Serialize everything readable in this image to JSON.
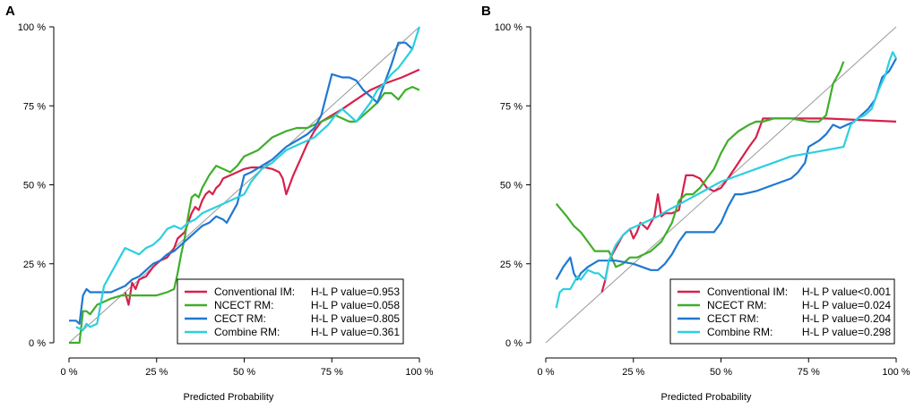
{
  "chart_data": [
    {
      "type": "line",
      "panel": "A",
      "title": "",
      "xlabel": "Predicted Probability",
      "ylabel": "",
      "xlim": [
        0,
        1
      ],
      "ylim": [
        0,
        1
      ],
      "x_ticks": [
        "0 %",
        "25 %",
        "50 %",
        "75 %",
        "100 %"
      ],
      "y_ticks": [
        "0 %",
        "25 %",
        "50 %",
        "75 %",
        "100 %"
      ],
      "legend_position": "bottom-right",
      "reference_line": {
        "x": [
          0,
          1
        ],
        "y": [
          0,
          1
        ],
        "color": "#999999"
      },
      "series": [
        {
          "name": "Conventional IM:",
          "hl": "H-L P value=0.953",
          "color": "#d6214b",
          "x": [
            0.16,
            0.17,
            0.18,
            0.19,
            0.2,
            0.22,
            0.24,
            0.26,
            0.28,
            0.3,
            0.31,
            0.33,
            0.34,
            0.35,
            0.36,
            0.37,
            0.38,
            0.39,
            0.4,
            0.41,
            0.42,
            0.43,
            0.44,
            0.46,
            0.48,
            0.5,
            0.52,
            0.54,
            0.56,
            0.58,
            0.6,
            0.61,
            0.62,
            0.64,
            0.66,
            0.68,
            0.7,
            0.72,
            0.75,
            0.78,
            0.82,
            0.86,
            0.9,
            0.95,
            1.0
          ],
          "y": [
            0.16,
            0.12,
            0.19,
            0.17,
            0.2,
            0.21,
            0.24,
            0.26,
            0.27,
            0.3,
            0.33,
            0.35,
            0.38,
            0.41,
            0.43,
            0.42,
            0.45,
            0.47,
            0.48,
            0.47,
            0.49,
            0.5,
            0.52,
            0.53,
            0.54,
            0.55,
            0.555,
            0.555,
            0.555,
            0.55,
            0.54,
            0.52,
            0.47,
            0.53,
            0.58,
            0.63,
            0.67,
            0.7,
            0.72,
            0.74,
            0.77,
            0.8,
            0.82,
            0.84,
            0.865
          ]
        },
        {
          "name": "NCECT RM:",
          "hl": "H-L P value=0.058",
          "color": "#3fae2a",
          "x": [
            0.0,
            0.03,
            0.04,
            0.05,
            0.06,
            0.08,
            0.1,
            0.12,
            0.15,
            0.2,
            0.25,
            0.28,
            0.3,
            0.31,
            0.32,
            0.33,
            0.34,
            0.35,
            0.36,
            0.37,
            0.38,
            0.39,
            0.4,
            0.42,
            0.44,
            0.46,
            0.48,
            0.5,
            0.52,
            0.54,
            0.56,
            0.58,
            0.6,
            0.62,
            0.65,
            0.68,
            0.7,
            0.72,
            0.74,
            0.76,
            0.78,
            0.8,
            0.82,
            0.84,
            0.86,
            0.88,
            0.9,
            0.92,
            0.94,
            0.96,
            0.98,
            1.0
          ],
          "y": [
            0.0,
            0.0,
            0.1,
            0.1,
            0.09,
            0.12,
            0.13,
            0.14,
            0.15,
            0.15,
            0.15,
            0.16,
            0.17,
            0.22,
            0.28,
            0.33,
            0.4,
            0.46,
            0.47,
            0.46,
            0.49,
            0.51,
            0.53,
            0.56,
            0.55,
            0.54,
            0.56,
            0.59,
            0.6,
            0.61,
            0.63,
            0.65,
            0.66,
            0.67,
            0.68,
            0.68,
            0.69,
            0.7,
            0.71,
            0.72,
            0.71,
            0.7,
            0.7,
            0.72,
            0.74,
            0.76,
            0.79,
            0.79,
            0.77,
            0.8,
            0.81,
            0.8
          ]
        },
        {
          "name": "CECT RM:",
          "hl": "H-L P value=0.805",
          "color": "#1f78d1",
          "x": [
            0.0,
            0.02,
            0.03,
            0.04,
            0.05,
            0.06,
            0.08,
            0.1,
            0.12,
            0.14,
            0.16,
            0.18,
            0.2,
            0.22,
            0.24,
            0.26,
            0.28,
            0.3,
            0.32,
            0.34,
            0.36,
            0.38,
            0.4,
            0.42,
            0.44,
            0.45,
            0.46,
            0.48,
            0.5,
            0.52,
            0.55,
            0.58,
            0.6,
            0.62,
            0.65,
            0.68,
            0.7,
            0.72,
            0.75,
            0.78,
            0.8,
            0.82,
            0.84,
            0.86,
            0.88,
            0.9,
            0.92,
            0.94,
            0.96,
            0.97,
            0.98
          ],
          "y": [
            0.07,
            0.07,
            0.06,
            0.15,
            0.17,
            0.16,
            0.16,
            0.16,
            0.16,
            0.17,
            0.18,
            0.2,
            0.21,
            0.23,
            0.25,
            0.26,
            0.28,
            0.29,
            0.31,
            0.33,
            0.35,
            0.37,
            0.38,
            0.4,
            0.39,
            0.38,
            0.4,
            0.44,
            0.53,
            0.54,
            0.56,
            0.58,
            0.6,
            0.62,
            0.64,
            0.66,
            0.68,
            0.72,
            0.85,
            0.84,
            0.84,
            0.83,
            0.8,
            0.78,
            0.76,
            0.82,
            0.88,
            0.95,
            0.95,
            0.94,
            0.93
          ]
        },
        {
          "name": "Combine RM:",
          "hl": "H-L P value=0.361",
          "color": "#2ccfdf",
          "x": [
            0.02,
            0.04,
            0.05,
            0.06,
            0.08,
            0.1,
            0.12,
            0.14,
            0.16,
            0.18,
            0.2,
            0.22,
            0.24,
            0.26,
            0.28,
            0.3,
            0.32,
            0.34,
            0.36,
            0.38,
            0.4,
            0.42,
            0.44,
            0.46,
            0.48,
            0.5,
            0.52,
            0.55,
            0.58,
            0.6,
            0.62,
            0.64,
            0.66,
            0.68,
            0.7,
            0.72,
            0.74,
            0.76,
            0.78,
            0.8,
            0.82,
            0.84,
            0.86,
            0.88,
            0.9,
            0.92,
            0.94,
            0.96,
            0.98,
            1.0
          ],
          "y": [
            0.05,
            0.04,
            0.06,
            0.05,
            0.06,
            0.18,
            0.22,
            0.26,
            0.3,
            0.29,
            0.28,
            0.3,
            0.31,
            0.33,
            0.36,
            0.37,
            0.36,
            0.38,
            0.39,
            0.41,
            0.42,
            0.43,
            0.44,
            0.45,
            0.46,
            0.47,
            0.51,
            0.55,
            0.57,
            0.59,
            0.61,
            0.62,
            0.63,
            0.64,
            0.65,
            0.67,
            0.69,
            0.72,
            0.74,
            0.72,
            0.7,
            0.73,
            0.76,
            0.8,
            0.82,
            0.85,
            0.87,
            0.9,
            0.93,
            1.0
          ]
        }
      ]
    },
    {
      "type": "line",
      "panel": "B",
      "title": "",
      "xlabel": "Predicted Probability",
      "ylabel": "",
      "xlim": [
        0,
        1
      ],
      "ylim": [
        0,
        1
      ],
      "x_ticks": [
        "0 %",
        "25 %",
        "50 %",
        "75 %",
        "100 %"
      ],
      "y_ticks": [
        "0 %",
        "25 %",
        "50 %",
        "75 %",
        "100 %"
      ],
      "legend_position": "bottom-right",
      "reference_line": {
        "x": [
          0,
          1
        ],
        "y": [
          0,
          1
        ],
        "color": "#999999"
      },
      "series": [
        {
          "name": "Conventional IM:",
          "hl": "H-L P value<0.001",
          "color": "#d6214b",
          "x": [
            0.16,
            0.17,
            0.18,
            0.2,
            0.22,
            0.24,
            0.25,
            0.26,
            0.27,
            0.28,
            0.29,
            0.3,
            0.31,
            0.32,
            0.33,
            0.34,
            0.36,
            0.38,
            0.4,
            0.42,
            0.44,
            0.46,
            0.48,
            0.5,
            0.52,
            0.55,
            0.58,
            0.6,
            0.62,
            0.65,
            0.7,
            0.8,
            0.9,
            1.0
          ],
          "y": [
            0.16,
            0.2,
            0.26,
            0.3,
            0.34,
            0.36,
            0.33,
            0.35,
            0.38,
            0.37,
            0.36,
            0.38,
            0.4,
            0.47,
            0.4,
            0.41,
            0.41,
            0.42,
            0.53,
            0.53,
            0.52,
            0.49,
            0.48,
            0.49,
            0.52,
            0.57,
            0.62,
            0.65,
            0.71,
            0.71,
            0.71,
            0.71,
            0.705,
            0.7
          ]
        },
        {
          "name": "NCECT RM:",
          "hl": "H-L P value=0.024",
          "color": "#3fae2a",
          "x": [
            0.03,
            0.06,
            0.08,
            0.1,
            0.12,
            0.14,
            0.16,
            0.18,
            0.2,
            0.22,
            0.24,
            0.26,
            0.28,
            0.3,
            0.33,
            0.36,
            0.38,
            0.4,
            0.42,
            0.44,
            0.46,
            0.48,
            0.5,
            0.52,
            0.55,
            0.58,
            0.6,
            0.62,
            0.65,
            0.7,
            0.75,
            0.78,
            0.8,
            0.82,
            0.84,
            0.85
          ],
          "y": [
            0.44,
            0.4,
            0.37,
            0.35,
            0.32,
            0.29,
            0.29,
            0.29,
            0.24,
            0.25,
            0.27,
            0.27,
            0.28,
            0.29,
            0.32,
            0.38,
            0.45,
            0.47,
            0.47,
            0.49,
            0.52,
            0.55,
            0.6,
            0.64,
            0.67,
            0.69,
            0.7,
            0.7,
            0.71,
            0.71,
            0.7,
            0.7,
            0.72,
            0.82,
            0.86,
            0.89
          ]
        },
        {
          "name": "CECT RM:",
          "hl": "H-L P value=0.204",
          "color": "#1f78d1",
          "x": [
            0.03,
            0.05,
            0.07,
            0.08,
            0.09,
            0.1,
            0.12,
            0.15,
            0.2,
            0.25,
            0.3,
            0.32,
            0.34,
            0.36,
            0.38,
            0.4,
            0.42,
            0.44,
            0.46,
            0.48,
            0.5,
            0.52,
            0.54,
            0.56,
            0.6,
            0.65,
            0.7,
            0.72,
            0.74,
            0.75,
            0.78,
            0.8,
            0.82,
            0.84,
            0.86,
            0.88,
            0.9,
            0.92,
            0.94,
            0.96,
            0.98,
            1.0
          ],
          "y": [
            0.2,
            0.24,
            0.27,
            0.22,
            0.2,
            0.22,
            0.24,
            0.26,
            0.26,
            0.25,
            0.23,
            0.23,
            0.25,
            0.28,
            0.32,
            0.35,
            0.35,
            0.35,
            0.35,
            0.35,
            0.38,
            0.43,
            0.47,
            0.47,
            0.48,
            0.5,
            0.52,
            0.54,
            0.57,
            0.62,
            0.64,
            0.66,
            0.69,
            0.68,
            0.69,
            0.7,
            0.72,
            0.74,
            0.77,
            0.84,
            0.86,
            0.9
          ]
        },
        {
          "name": "Combine RM:",
          "hl": "H-L P value=0.298",
          "color": "#2ccfdf",
          "x": [
            0.03,
            0.04,
            0.05,
            0.07,
            0.08,
            0.09,
            0.1,
            0.12,
            0.14,
            0.15,
            0.17,
            0.18,
            0.2,
            0.22,
            0.24,
            0.26,
            0.28,
            0.3,
            0.32,
            0.35,
            0.4,
            0.45,
            0.5,
            0.55,
            0.6,
            0.65,
            0.7,
            0.75,
            0.8,
            0.85,
            0.87,
            0.89,
            0.91,
            0.93,
            0.95,
            0.97,
            0.98,
            0.99,
            1.0
          ],
          "y": [
            0.11,
            0.16,
            0.17,
            0.17,
            0.19,
            0.21,
            0.2,
            0.23,
            0.22,
            0.22,
            0.2,
            0.26,
            0.31,
            0.34,
            0.36,
            0.37,
            0.38,
            0.39,
            0.4,
            0.42,
            0.45,
            0.48,
            0.51,
            0.53,
            0.55,
            0.57,
            0.59,
            0.6,
            0.61,
            0.62,
            0.69,
            0.71,
            0.72,
            0.74,
            0.8,
            0.85,
            0.89,
            0.92,
            0.9
          ]
        }
      ]
    }
  ]
}
